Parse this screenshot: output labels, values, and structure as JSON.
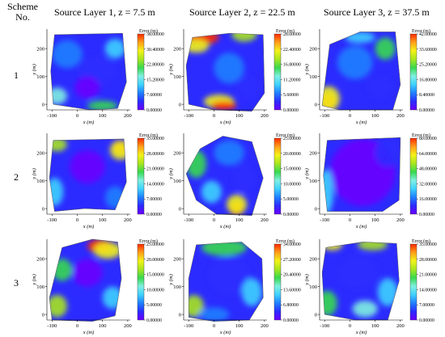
{
  "header": {
    "scheme_label": "Scheme\nNo.",
    "columns": [
      "Source Layer 1, z = 7.5 m",
      "Source Layer 2, z = 22.5 m",
      "Source Layer 3, z = 37.5 m"
    ]
  },
  "row_labels": [
    "1",
    "2",
    "3"
  ],
  "colors": {
    "scale": [
      "#6a00ff",
      "#2b2bff",
      "#1f7fff",
      "#3fd1ff",
      "#7ff0e0",
      "#38d94f",
      "#a8e61f",
      "#f2f21a",
      "#ff9f1a",
      "#ff2a00"
    ]
  },
  "chart_data": {
    "type": "heatmap",
    "xlabel": "x (m)",
    "ylabel": "y (m)",
    "colorbar_title": "Error (m)",
    "x_ticks": [
      -100,
      0,
      100,
      200
    ],
    "y_ticks": [
      0,
      100,
      200
    ],
    "xlim": [
      -120,
      210
    ],
    "ylim": [
      -20,
      270
    ],
    "panels": [
      {
        "row": 1,
        "col": 1,
        "ticks": [
          "38.00000",
          "30.40000",
          "22.80000",
          "15.20000",
          "7.60000",
          "0.00000"
        ],
        "max": 38
      },
      {
        "row": 1,
        "col": 2,
        "ticks": [
          "28.00000",
          "22.40000",
          "16.80000",
          "11.20000",
          "5.60000",
          "0.00000"
        ],
        "max": 28
      },
      {
        "row": 1,
        "col": 3,
        "ticks": [
          "42.00000",
          "33.60000",
          "25.20000",
          "16.80000",
          "8.40000",
          "0.00000"
        ],
        "max": 42
      },
      {
        "row": 2,
        "col": 1,
        "ticks": [
          "35.00000",
          "28.00000",
          "21.00000",
          "14.00000",
          "7.00000",
          "0.00000"
        ],
        "max": 35
      },
      {
        "row": 2,
        "col": 2,
        "ticks": [
          "25.00000",
          "20.00000",
          "15.00000",
          "10.00000",
          "5.00000",
          "0.00000"
        ],
        "max": 25
      },
      {
        "row": 2,
        "col": 3,
        "ticks": [
          "80.00000",
          "64.00000",
          "48.00000",
          "32.00000",
          "16.00000",
          "0.00000"
        ],
        "max": 80
      },
      {
        "row": 3,
        "col": 1,
        "ticks": [
          "25.00000",
          "20.00000",
          "15.00000",
          "10.00000",
          "5.00000",
          "0.00000"
        ],
        "max": 25
      },
      {
        "row": 3,
        "col": 2,
        "ticks": [
          "34.00000",
          "27.20000",
          "20.40000",
          "13.60000",
          "6.80000",
          "0.00000"
        ],
        "max": 34
      },
      {
        "row": 3,
        "col": 3,
        "ticks": [
          "35.00000",
          "28.00000",
          "21.00000",
          "14.00000",
          "7.00000",
          "0.00000"
        ],
        "max": 35
      }
    ]
  }
}
